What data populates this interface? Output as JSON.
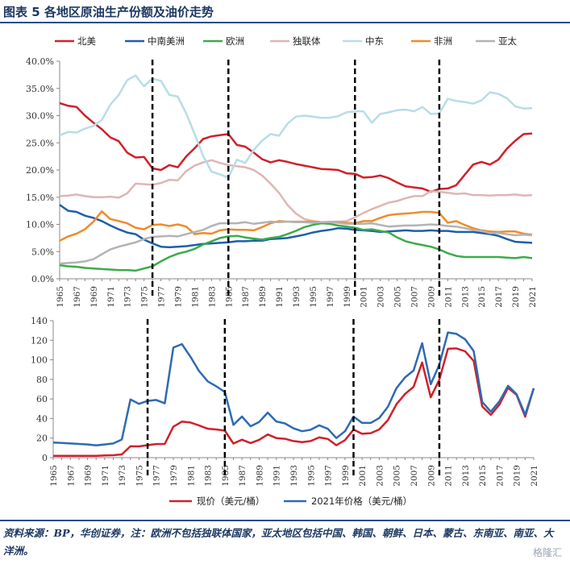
{
  "header": {
    "title": "图表 5   各地区原油生产份额及油价走势"
  },
  "footer": {
    "source": "资料来源：BP，华创证券，注：欧洲不包括独联体国家，亚太地区包括中国、韩国、朝鲜、日本、蒙古、东南亚、南亚、大洋洲。",
    "watermark": "格隆汇"
  },
  "colors": {
    "北美": "#d0202b",
    "中南美洲": "#1f5fa8",
    "欧洲": "#3cab4a",
    "独联体": "#e0b5b5",
    "中东": "#b8dde6",
    "非洲": "#ef8c2b",
    "亚太": "#b3b3b3",
    "现价": "#d0202b",
    "2021年价格": "#2e6ab3"
  },
  "chart_data": [
    {
      "type": "line",
      "x": [
        1965,
        1966,
        1967,
        1968,
        1969,
        1970,
        1971,
        1972,
        1973,
        1974,
        1975,
        1976,
        1977,
        1978,
        1979,
        1980,
        1981,
        1982,
        1983,
        1984,
        1985,
        1986,
        1987,
        1988,
        1989,
        1990,
        1991,
        1992,
        1993,
        1994,
        1995,
        1996,
        1997,
        1998,
        1999,
        2000,
        2001,
        2002,
        2003,
        2004,
        2005,
        2006,
        2007,
        2008,
        2009,
        2010,
        2011,
        2012,
        2013,
        2014,
        2015,
        2016,
        2017,
        2018,
        2019,
        2020,
        2021
      ],
      "x_tick_labels": [
        "1965",
        "1967",
        "1969",
        "1971",
        "1973",
        "1975",
        "1977",
        "1979",
        "1981",
        "1983",
        "1985",
        "1987",
        "1989",
        "1991",
        "1993",
        "1995",
        "1997",
        "1999",
        "2001",
        "2003",
        "2005",
        "2007",
        "2009",
        "2011",
        "2013",
        "2015",
        "2017",
        "2019",
        "2021"
      ],
      "y_tick_labels": [
        "0.0%",
        "5.0%",
        "10.0%",
        "15.0%",
        "20.0%",
        "25.0%",
        "30.0%",
        "35.0%",
        "40.0%"
      ],
      "ylim": [
        0,
        40
      ],
      "legend_position": "top",
      "series": [
        {
          "name": "北美",
          "values": [
            32.3,
            31.8,
            31.6,
            30.0,
            28.7,
            27.5,
            26.0,
            25.3,
            23.2,
            22.3,
            22.4,
            20.3,
            20.0,
            20.9,
            20.5,
            22.5,
            24.0,
            25.7,
            26.2,
            26.4,
            26.6,
            24.6,
            24.3,
            23.2,
            22.0,
            21.4,
            21.8,
            21.5,
            21.1,
            20.8,
            20.5,
            20.2,
            20.1,
            20.0,
            19.4,
            19.3,
            18.6,
            18.7,
            19.0,
            18.5,
            17.7,
            17.0,
            16.8,
            16.6,
            16.0,
            16.5,
            16.6,
            17.2,
            19.1,
            21.0,
            21.5,
            21.0,
            21.9,
            23.9,
            25.4,
            26.6,
            26.7
          ]
        },
        {
          "name": "中南美洲",
          "values": [
            13.6,
            12.5,
            12.3,
            11.6,
            11.2,
            10.6,
            9.8,
            9.1,
            8.5,
            8.2,
            7.2,
            6.5,
            5.9,
            5.8,
            5.9,
            6.0,
            6.2,
            6.4,
            6.5,
            6.6,
            6.7,
            6.9,
            6.9,
            7.0,
            7.0,
            7.3,
            7.4,
            7.5,
            7.8,
            8.1,
            8.5,
            8.8,
            9.0,
            9.3,
            9.2,
            9.0,
            8.9,
            8.8,
            8.6,
            8.7,
            8.8,
            8.9,
            8.8,
            8.8,
            8.9,
            8.8,
            8.8,
            8.6,
            8.6,
            8.6,
            8.4,
            8.2,
            7.9,
            7.3,
            6.8,
            6.7,
            6.6
          ]
        },
        {
          "name": "欧洲",
          "values": [
            2.5,
            2.3,
            2.2,
            2.0,
            1.9,
            1.8,
            1.7,
            1.6,
            1.6,
            1.5,
            1.9,
            2.3,
            3.2,
            4.0,
            4.6,
            5.0,
            5.5,
            6.3,
            6.9,
            7.5,
            7.8,
            7.9,
            7.6,
            7.4,
            7.2,
            7.5,
            7.7,
            8.2,
            8.8,
            9.5,
            9.9,
            10.2,
            10.1,
            9.8,
            9.6,
            9.4,
            9.0,
            9.1,
            8.8,
            8.5,
            7.6,
            6.9,
            6.5,
            6.2,
            5.9,
            5.4,
            4.7,
            4.2,
            4.0,
            4.0,
            4.0,
            4.0,
            4.0,
            3.9,
            3.8,
            4.0,
            3.8
          ]
        },
        {
          "name": "独联体",
          "values": [
            15.2,
            15.3,
            15.5,
            15.2,
            15.0,
            15.0,
            15.1,
            14.9,
            15.7,
            17.5,
            17.4,
            17.3,
            17.6,
            18.2,
            18.1,
            19.8,
            20.8,
            21.4,
            21.8,
            21.3,
            20.9,
            20.7,
            20.5,
            20.0,
            19.0,
            17.5,
            15.8,
            13.6,
            12.0,
            11.0,
            10.6,
            10.4,
            10.5,
            10.5,
            10.6,
            11.3,
            12.1,
            12.8,
            13.4,
            14.0,
            14.3,
            14.8,
            15.2,
            15.2,
            16.1,
            16.0,
            15.8,
            15.6,
            15.7,
            15.4,
            15.4,
            15.3,
            15.4,
            15.4,
            15.5,
            15.3,
            15.4
          ]
        },
        {
          "name": "中东",
          "values": [
            26.4,
            27.0,
            26.9,
            27.6,
            28.1,
            29.2,
            32.0,
            33.8,
            36.5,
            37.4,
            35.4,
            36.8,
            36.4,
            33.8,
            33.5,
            30.4,
            26.6,
            22.6,
            19.7,
            19.2,
            18.6,
            21.9,
            21.3,
            23.7,
            25.4,
            26.6,
            26.3,
            28.5,
            29.8,
            30.0,
            29.8,
            29.6,
            29.6,
            29.9,
            30.6,
            30.8,
            30.8,
            28.7,
            30.3,
            30.6,
            31.0,
            31.1,
            30.8,
            31.6,
            30.3,
            30.4,
            33.1,
            32.7,
            32.5,
            32.2,
            32.8,
            34.3,
            34.0,
            33.2,
            31.7,
            31.3,
            31.4
          ]
        },
        {
          "name": "非洲",
          "values": [
            7.0,
            7.8,
            8.3,
            9.1,
            10.5,
            12.4,
            11.0,
            10.6,
            10.2,
            9.4,
            9.1,
            9.9,
            10.0,
            9.7,
            10.0,
            9.6,
            8.2,
            8.4,
            8.3,
            8.9,
            9.1,
            9.0,
            9.0,
            8.9,
            9.5,
            10.2,
            10.6,
            10.5,
            10.5,
            10.5,
            10.5,
            10.4,
            10.4,
            10.4,
            10.3,
            10.2,
            10.6,
            10.6,
            11.2,
            11.7,
            11.9,
            12.0,
            12.1,
            12.3,
            12.3,
            12.1,
            10.3,
            10.6,
            9.9,
            9.3,
            8.9,
            8.7,
            8.6,
            8.7,
            8.7,
            8.3,
            8.1
          ]
        },
        {
          "name": "亚太",
          "values": [
            2.8,
            2.9,
            3.0,
            3.2,
            3.6,
            4.5,
            5.4,
            5.9,
            6.3,
            6.7,
            7.3,
            7.7,
            7.8,
            7.9,
            7.8,
            8.2,
            8.6,
            9.0,
            9.7,
            10.2,
            10.2,
            10.2,
            10.4,
            10.1,
            10.3,
            10.5,
            10.4,
            10.5,
            10.4,
            10.4,
            10.3,
            10.4,
            10.4,
            10.3,
            10.1,
            10.1,
            10.1,
            10.2,
            9.9,
            9.6,
            9.7,
            9.8,
            9.8,
            9.9,
            10.0,
            9.9,
            9.7,
            9.6,
            9.3,
            9.0,
            8.8,
            8.4,
            8.4,
            8.2,
            8.0,
            8.1,
            8.0
          ]
        }
      ],
      "vlines": [
        1976,
        1985,
        2000,
        2010
      ]
    },
    {
      "type": "line",
      "x": [
        1965,
        1966,
        1967,
        1968,
        1969,
        1970,
        1971,
        1972,
        1973,
        1974,
        1975,
        1976,
        1977,
        1978,
        1979,
        1980,
        1981,
        1982,
        1983,
        1984,
        1985,
        1986,
        1987,
        1988,
        1989,
        1990,
        1991,
        1992,
        1993,
        1994,
        1995,
        1996,
        1997,
        1998,
        1999,
        2000,
        2001,
        2002,
        2003,
        2004,
        2005,
        2006,
        2007,
        2008,
        2009,
        2010,
        2011,
        2012,
        2013,
        2014,
        2015,
        2016,
        2017,
        2018,
        2019,
        2020,
        2021
      ],
      "x_tick_labels": [
        "1965",
        "1967",
        "1969",
        "1971",
        "1973",
        "1975",
        "1977",
        "1979",
        "1981",
        "1983",
        "1985",
        "1987",
        "1989",
        "1991",
        "1993",
        "1995",
        "1997",
        "1999",
        "2001",
        "2003",
        "2005",
        "2007",
        "2009",
        "2011",
        "2013",
        "2015",
        "2017",
        "2019",
        "2021"
      ],
      "y_tick_labels": [
        "0",
        "20",
        "40",
        "60",
        "80",
        "100",
        "120",
        "140"
      ],
      "ylim": [
        0,
        140
      ],
      "legend_position": "bottom",
      "series": [
        {
          "name": "现价",
          "values": [
            1.8,
            1.8,
            1.8,
            1.8,
            1.8,
            1.8,
            2.2,
            2.5,
            3.3,
            11.6,
            11.5,
            12.8,
            13.9,
            14.0,
            31.6,
            36.8,
            35.9,
            32.9,
            29.6,
            28.8,
            27.6,
            14.4,
            18.4,
            14.9,
            18.2,
            23.7,
            20.0,
            19.3,
            17.0,
            15.8,
            17.0,
            20.7,
            19.1,
            12.7,
            17.9,
            28.7,
            24.4,
            25.0,
            28.8,
            38.3,
            54.5,
            65.1,
            72.4,
            97.3,
            61.7,
            79.6,
            111.3,
            111.7,
            108.7,
            98.9,
            52.4,
            43.7,
            54.2,
            71.3,
            64.2,
            41.8,
            70.9
          ]
        },
        {
          "name": "2021年价格",
          "values": [
            15.5,
            15.0,
            14.5,
            14.0,
            13.5,
            12.5,
            13.5,
            14.5,
            18.5,
            59.5,
            55.0,
            58.0,
            59.0,
            55.5,
            112.5,
            116.0,
            103.0,
            88.5,
            78.0,
            73.0,
            67.0,
            33.5,
            42.0,
            32.0,
            36.5,
            46.0,
            37.0,
            35.0,
            30.0,
            27.0,
            28.5,
            33.0,
            29.5,
            20.0,
            27.0,
            42.0,
            35.5,
            35.5,
            40.5,
            52.0,
            71.0,
            82.0,
            89.0,
            117.0,
            75.0,
            95.0,
            128.0,
            126.5,
            121.0,
            109.0,
            57.0,
            47.0,
            57.5,
            73.5,
            65.0,
            44.0,
            70.9
          ]
        }
      ],
      "vlines": [
        1976,
        1985,
        2000,
        2010
      ]
    }
  ]
}
